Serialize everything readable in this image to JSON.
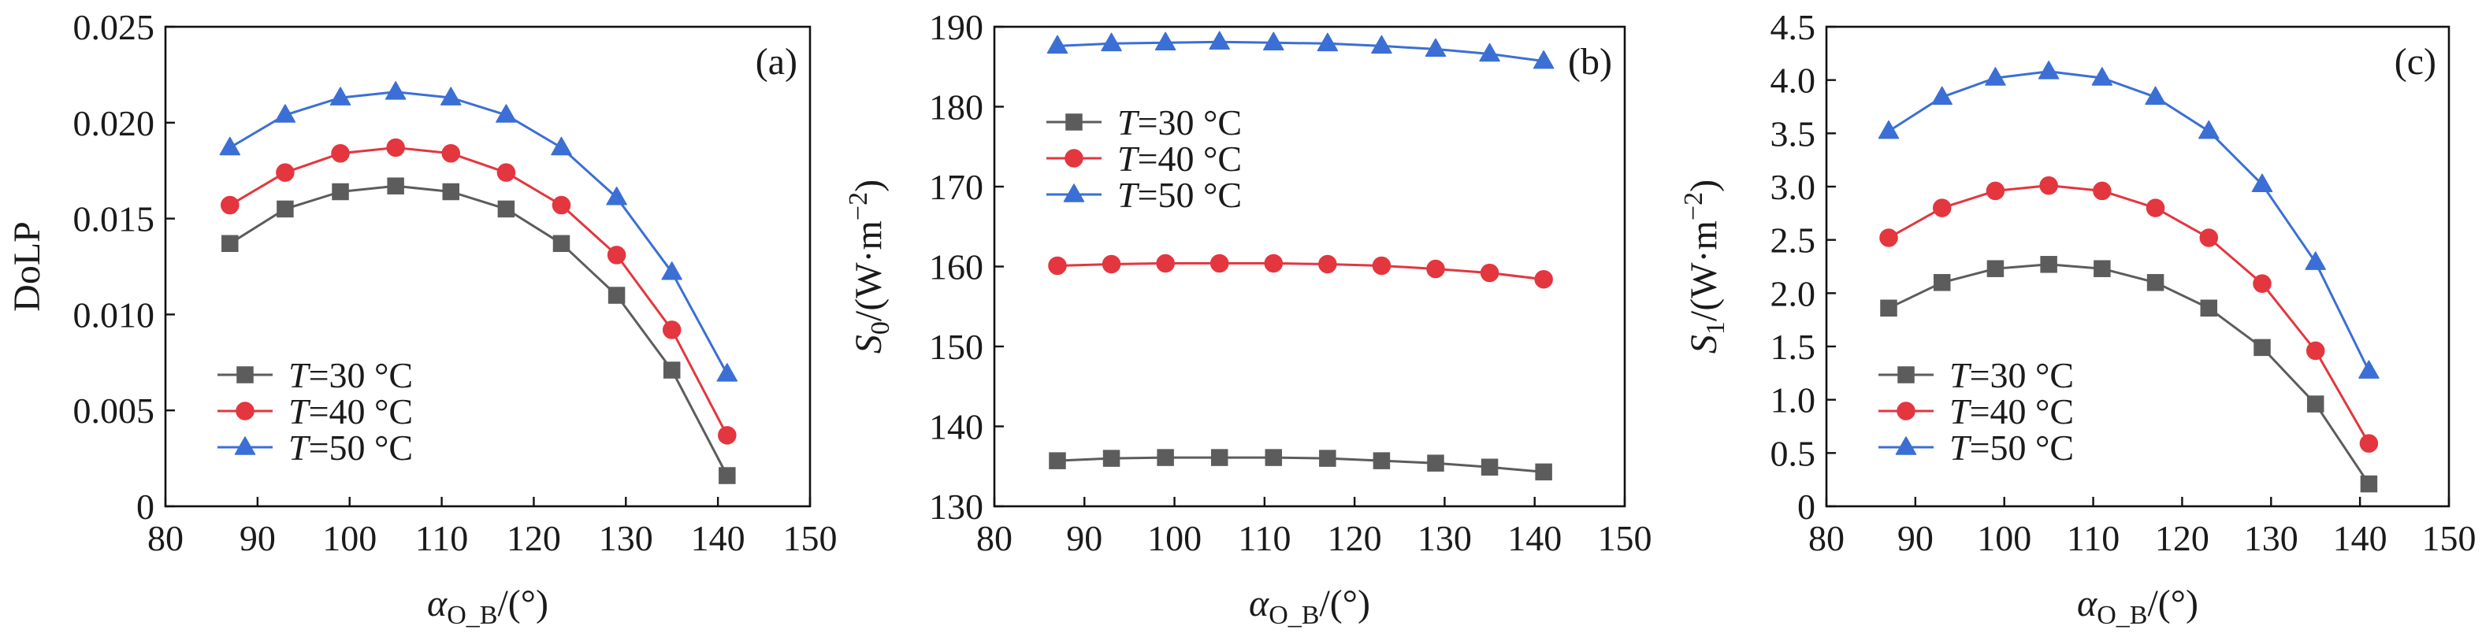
{
  "chart_data": [
    {
      "type": "line",
      "panel_label": "(a)",
      "title": "",
      "xlabel": {
        "symbol": "α",
        "sub": "O_B",
        "text": "/(°)"
      },
      "ylabel": {
        "text": "DoLP"
      },
      "xlim": [
        80,
        150
      ],
      "ylim": [
        0,
        0.025
      ],
      "xticks": [
        80,
        90,
        100,
        110,
        120,
        130,
        140,
        150
      ],
      "xtick_labels": [
        "80",
        "90",
        "100",
        "110",
        "120",
        "130",
        "140",
        "150"
      ],
      "yticks": [
        0,
        0.005,
        0.01,
        0.015,
        0.02,
        0.025
      ],
      "ytick_labels": [
        "0",
        "0.005",
        "0.010",
        "0.015",
        "0.020",
        "0.025"
      ],
      "grid": false,
      "legend": "bottom-left",
      "x": [
        87,
        93,
        99,
        105,
        111,
        117,
        123,
        129,
        135,
        141
      ],
      "series": [
        {
          "name": "T=30 °C",
          "marker": "square",
          "color": "#5c5c5c",
          "values": [
            0.0137,
            0.0155,
            0.0164,
            0.0167,
            0.0164,
            0.0155,
            0.0137,
            0.011,
            0.0071,
            0.0016
          ]
        },
        {
          "name": "T=40 °C",
          "marker": "circle",
          "color": "#e3363f",
          "values": [
            0.0157,
            0.0174,
            0.0184,
            0.0187,
            0.0184,
            0.0174,
            0.0157,
            0.0131,
            0.0092,
            0.0037
          ]
        },
        {
          "name": "T=50 °C",
          "marker": "triangle",
          "color": "#3b6fd5",
          "values": [
            0.0187,
            0.0204,
            0.0213,
            0.0216,
            0.0213,
            0.0204,
            0.0187,
            0.0161,
            0.0122,
            0.0069
          ]
        }
      ]
    },
    {
      "type": "line",
      "panel_label": "(b)",
      "title": "",
      "xlabel": {
        "symbol": "α",
        "sub": "O_B",
        "text": "/(°)"
      },
      "ylabel": {
        "symbol": "S",
        "sub": "0",
        "text": "/(W·m",
        "sup": "−2",
        "close": ")"
      },
      "xlim": [
        80,
        150
      ],
      "ylim": [
        130,
        190
      ],
      "xticks": [
        80,
        90,
        100,
        110,
        120,
        130,
        140,
        150
      ],
      "xtick_labels": [
        "80",
        "90",
        "100",
        "110",
        "120",
        "130",
        "140",
        "150"
      ],
      "yticks": [
        130,
        140,
        150,
        160,
        170,
        180,
        190
      ],
      "ytick_labels": [
        "130",
        "140",
        "150",
        "160",
        "170",
        "180",
        "190"
      ],
      "grid": false,
      "legend": "top-left",
      "x": [
        87,
        93,
        99,
        105,
        111,
        117,
        123,
        129,
        135,
        141
      ],
      "series": [
        {
          "name": "T=30 °C",
          "marker": "square",
          "color": "#5c5c5c",
          "values": [
            135.7,
            136.0,
            136.1,
            136.1,
            136.1,
            136.0,
            135.7,
            135.4,
            134.9,
            134.3
          ]
        },
        {
          "name": "T=40 °C",
          "marker": "circle",
          "color": "#e3363f",
          "values": [
            160.1,
            160.3,
            160.4,
            160.4,
            160.4,
            160.3,
            160.1,
            159.7,
            159.2,
            158.4
          ]
        },
        {
          "name": "T=50 °C",
          "marker": "triangle",
          "color": "#3b6fd5",
          "values": [
            187.6,
            187.9,
            188.0,
            188.1,
            188.0,
            187.9,
            187.6,
            187.2,
            186.6,
            185.7
          ]
        }
      ]
    },
    {
      "type": "line",
      "panel_label": "(c)",
      "title": "",
      "xlabel": {
        "symbol": "α",
        "sub": "O_B",
        "text": "/(°)"
      },
      "ylabel": {
        "symbol": "S",
        "sub": "1",
        "text": "/(W·m",
        "sup": "−2",
        "close": ")"
      },
      "xlim": [
        80,
        150
      ],
      "ylim": [
        0,
        4.5
      ],
      "xticks": [
        80,
        90,
        100,
        110,
        120,
        130,
        140,
        150
      ],
      "xtick_labels": [
        "80",
        "90",
        "100",
        "110",
        "120",
        "130",
        "140",
        "150"
      ],
      "yticks": [
        0,
        0.5,
        1.0,
        1.5,
        2.0,
        2.5,
        3.0,
        3.5,
        4.0,
        4.5
      ],
      "ytick_labels": [
        "0",
        "0.5",
        "1.0",
        "1.5",
        "2.0",
        "2.5",
        "3.0",
        "3.5",
        "4.0",
        "4.5"
      ],
      "grid": false,
      "legend": "bottom-left",
      "x": [
        87,
        93,
        99,
        105,
        111,
        117,
        123,
        129,
        135,
        141
      ],
      "series": [
        {
          "name": "T=30 °C",
          "marker": "square",
          "color": "#5c5c5c",
          "values": [
            1.86,
            2.1,
            2.23,
            2.27,
            2.23,
            2.1,
            1.86,
            1.49,
            0.96,
            0.21
          ]
        },
        {
          "name": "T=40 °C",
          "marker": "circle",
          "color": "#e3363f",
          "values": [
            2.52,
            2.8,
            2.96,
            3.01,
            2.96,
            2.8,
            2.52,
            2.09,
            1.46,
            0.59
          ]
        },
        {
          "name": "T=50 °C",
          "marker": "triangle",
          "color": "#3b6fd5",
          "values": [
            3.52,
            3.84,
            4.02,
            4.08,
            4.02,
            3.84,
            3.52,
            3.02,
            2.29,
            1.27
          ]
        }
      ]
    }
  ]
}
